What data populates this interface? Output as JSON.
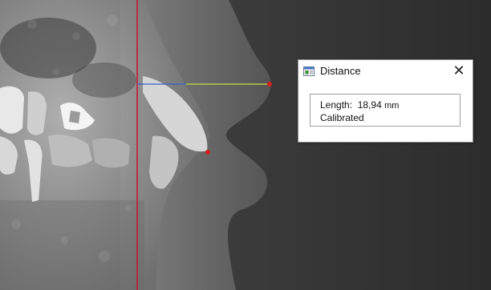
{
  "dialog": {
    "title": "Distance",
    "close_glyph": "✕",
    "length_label": "Length:",
    "length_value": "18,94",
    "length_unit": "mm",
    "status": "Calibrated",
    "icon": "measure-window-icon"
  },
  "measurement": {
    "reference_line_color": "#c8102e",
    "measure_line_color": "#b5c84a",
    "measure_line_start_color": "#3a5fd0",
    "endpoint_color": "#d41e1e"
  }
}
